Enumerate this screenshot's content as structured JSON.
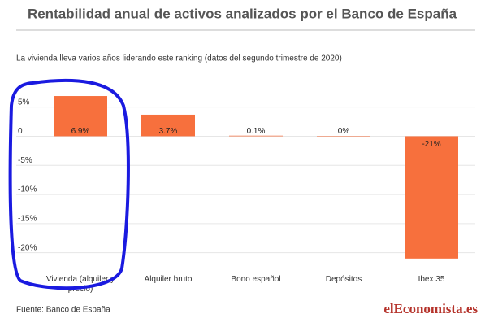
{
  "chart_data": {
    "type": "bar",
    "title": "Rentabilidad anual de activos analizados por el Banco de España",
    "subtitle": "La vivienda lleva varios años liderando este ranking (datos del segundo trimestre de 2020)",
    "categories": [
      "Vivienda (alquiler y precio)",
      "Alquiler bruto",
      "Bono español",
      "Depósitos",
      "Ibex 35"
    ],
    "values": [
      6.9,
      3.7,
      0.1,
      0,
      -21
    ],
    "value_labels": [
      "6.9%",
      "3.7%",
      "0.1%",
      "0%",
      "-21%"
    ],
    "color": "#f7703d",
    "ylim": [
      -22,
      9
    ],
    "yticks": [
      {
        "value": 5,
        "label": "5%"
      },
      0,
      {
        "value": -5,
        "label": "-5%"
      },
      {
        "value": -10,
        "label": "-10%"
      },
      {
        "value": -15,
        "label": "-15%"
      },
      {
        "value": -20,
        "label": "-20%"
      }
    ],
    "grid": true,
    "source": "Fuente: Banco de España",
    "logo": "elEconomista.es"
  }
}
